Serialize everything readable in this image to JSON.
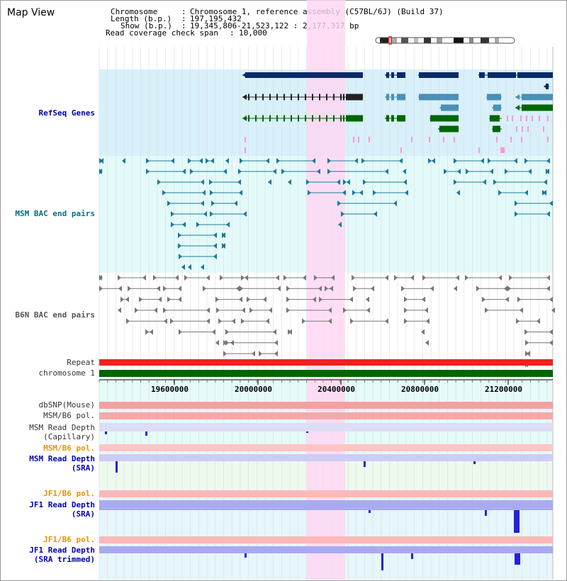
{
  "page": {
    "title": "Map View"
  },
  "info": {
    "chromosome_label": "Chromosome",
    "chromosome_value": "Chromosome 1, reference assembly (C57BL/6J) (Build 37)",
    "length_label": "Length (b.p.)",
    "length_value": "197,195,432",
    "show_label": "Show (b.p.)",
    "show_value": "19,345,806-21,523,122 : 2,177,317 bp",
    "coverage_label": "Read coverage check span",
    "coverage_value": "10,000"
  },
  "tracks": {
    "refseq": "RefSeq Genes",
    "msm_bac": "MSM BAC end pairs",
    "b6n_bac": "B6N BAC end pairs",
    "repeat": "Repeat",
    "chromosome": "chromosome 1",
    "dbsnp": "dbSNP(Mouse)",
    "msm_pol_1": "MSM/B6 pol.",
    "msm_depth_cap_1": "MSM Read Depth",
    "msm_depth_cap_2": "(Capillary)",
    "msm_pol_2": "MSM/B6 pol.",
    "msm_depth_sra_1": "MSM Read Depth",
    "msm_depth_sra_2": "(SRA)",
    "jf1_pol_1": "JF1/B6 pol.",
    "jf1_depth_sra_1": "JF1 Read Depth",
    "jf1_depth_sra_2": "(SRA)",
    "jf1_pol_2": "JF1/B6 pol.",
    "jf1_depth_trim_1": "JF1 Read Depth",
    "jf1_depth_trim_2": "(SRA trimmed)"
  },
  "axis": {
    "ticks": [
      "19600000",
      "20000000",
      "20400000",
      "20800000",
      "21200000"
    ]
  },
  "colors": {
    "highlight": "#ffd6f2",
    "refseq_bg": "#d8f0fa",
    "bac_bg": "#e4fafa",
    "navy_gene": "#0a2a66",
    "steel_gene": "#4a90b8",
    "green_gene": "#006600",
    "pink_gene": "#ff99cc",
    "teal_bac": "#1a7a99",
    "gray_bac": "#777777",
    "depth_blue": "#2222dd",
    "depth_light": "#8888ee",
    "chrom_green": "#006600"
  }
}
